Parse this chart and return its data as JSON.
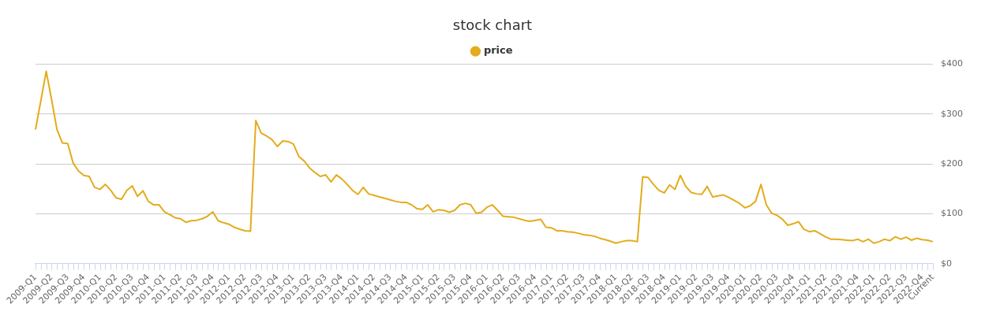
{
  "chart_data": {
    "type": "line",
    "title": "stock chart",
    "categories": [
      "2009-Q1",
      null,
      null,
      "2009-Q2",
      null,
      null,
      "2009-Q3",
      null,
      null,
      "2009-Q4",
      null,
      null,
      "2010-Q1",
      null,
      null,
      "2010-Q2",
      null,
      null,
      "2010-Q3",
      null,
      null,
      "2010-Q4",
      null,
      null,
      "2011-Q1",
      null,
      null,
      "2011-Q2",
      null,
      null,
      "2011-Q3",
      null,
      null,
      "2011-Q4",
      null,
      null,
      "2012-Q1",
      null,
      null,
      "2012-Q2",
      null,
      null,
      "2012-Q3",
      null,
      null,
      "2012-Q4",
      null,
      null,
      "2013-Q1",
      null,
      null,
      "2013-Q2",
      null,
      null,
      "2013-Q3",
      null,
      null,
      "2013-Q4",
      null,
      null,
      "2014-Q1",
      null,
      null,
      "2014-Q2",
      null,
      null,
      "2014-Q3",
      null,
      null,
      "2014-Q4",
      null,
      null,
      "2015-Q1",
      null,
      null,
      "2015-Q2",
      null,
      null,
      "2015-Q3",
      null,
      null,
      "2015-Q4",
      null,
      null,
      "2016-Q1",
      null,
      null,
      "2016-Q2",
      null,
      null,
      "2016-Q3",
      null,
      null,
      "2016-Q4",
      null,
      null,
      "2017-Q1",
      null,
      null,
      "2017-Q2",
      null,
      null,
      "2017-Q3",
      null,
      null,
      "2017-Q4",
      null,
      null,
      "2018-Q1",
      null,
      null,
      "2018-Q2",
      null,
      null,
      "2018-Q3",
      null,
      null,
      "2018-Q4",
      null,
      null,
      "2019-Q1",
      null,
      null,
      "2019-Q2",
      null,
      null,
      "2019-Q3",
      null,
      null,
      "2019-Q4",
      null,
      null,
      "2020-Q1",
      null,
      null,
      "2020-Q2",
      null,
      null,
      "2020-Q3",
      null,
      null,
      "2020-Q4",
      null,
      null,
      "2021-Q1",
      null,
      null,
      "2021-Q2",
      null,
      null,
      "2021-Q3",
      null,
      null,
      "2021-Q4",
      null,
      null,
      "2022-Q1",
      null,
      null,
      "2022-Q2",
      null,
      null,
      "2022-Q3",
      null,
      null,
      "2022-Q4",
      null,
      "Current"
    ],
    "series": [
      {
        "name": "price",
        "color": "#e3ac1c",
        "values": [
          269,
          327,
          386,
          329,
          269,
          242,
          241,
          202,
          186,
          177,
          175,
          153,
          149,
          159,
          147,
          132,
          129,
          147,
          156,
          135,
          146,
          125,
          118,
          118,
          104,
          98,
          92,
          90,
          83,
          86,
          87,
          90,
          95,
          104,
          86,
          82,
          79,
          73,
          69,
          66,
          65,
          287,
          262,
          256,
          249,
          235,
          246,
          245,
          240,
          215,
          206,
          192,
          183,
          175,
          178,
          164,
          178,
          170,
          159,
          147,
          139,
          153,
          140,
          137,
          134,
          131,
          128,
          125,
          123,
          123,
          118,
          110,
          109,
          118,
          104,
          108,
          107,
          103,
          107,
          118,
          121,
          118,
          101,
          103,
          113,
          118,
          107,
          95,
          94,
          93,
          90,
          87,
          85,
          87,
          89,
          73,
          72,
          66,
          66,
          64,
          63,
          61,
          58,
          57,
          55,
          51,
          48,
          45,
          41,
          44,
          46,
          46,
          44,
          174,
          173,
          159,
          147,
          142,
          158,
          149,
          177,
          155,
          143,
          140,
          139,
          155,
          134,
          136,
          138,
          133,
          127,
          121,
          112,
          116,
          125,
          159,
          118,
          101,
          97,
          89,
          77,
          80,
          84,
          69,
          64,
          66,
          60,
          54,
          49,
          49,
          48,
          47,
          46,
          49,
          44,
          49,
          41,
          44,
          49,
          46,
          54,
          49,
          53,
          47,
          51,
          48,
          47,
          44
        ]
      }
    ],
    "ylim": [
      0,
      400
    ],
    "yticks": [
      {
        "value": 0,
        "label": "$0"
      },
      {
        "value": 100,
        "label": "$100"
      },
      {
        "value": 200,
        "label": "$200"
      },
      {
        "value": 300,
        "label": "$300"
      },
      {
        "value": 400,
        "label": "$400"
      }
    ],
    "grid": "y",
    "legend": "top",
    "marker": "none",
    "line_style": "solid"
  }
}
